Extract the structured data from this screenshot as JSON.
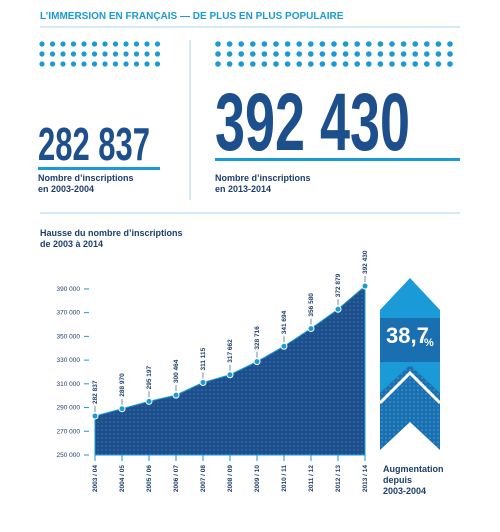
{
  "title": "L’IMMERSION EN FRANÇAIS — DE PLUS EN PLUS POPULAIRE",
  "stats": [
    {
      "number": "282 837",
      "lines": [
        "Nombre d’inscriptions",
        "en 2003-2004"
      ]
    },
    {
      "number": "392 430",
      "lines": [
        "Nombre d’inscriptions",
        "en 2013-2014"
      ]
    }
  ],
  "increase": {
    "number": "38,7",
    "unit": "%",
    "lines": [
      "Augmentation",
      "depuis",
      "2003-2004"
    ]
  },
  "chart_data": {
    "type": "area",
    "title": [
      "Hausse du nombre d’inscriptions",
      "de 2003 à 2014"
    ],
    "categories": [
      "2003 / 04",
      "2004 / 05",
      "2005 / 06",
      "2006 / 07",
      "2007 / 08",
      "2008 / 09",
      "2009 / 10",
      "2010 / 11",
      "2011 / 12",
      "2012 / 13",
      "2013 / 14"
    ],
    "values": [
      282837,
      288970,
      295197,
      300464,
      311115,
      317662,
      328716,
      341694,
      356580,
      372879,
      392430
    ],
    "value_labels": [
      "282 837",
      "288 970",
      "295 197",
      "300 464",
      "311 115",
      "317 662",
      "328 716",
      "341 694",
      "356 580",
      "372 879",
      "392 430"
    ],
    "color": "#1c4f8c",
    "ylim": [
      250000,
      395000
    ],
    "yticks": [
      {
        "value": 250000,
        "label": "250 000"
      },
      {
        "value": 270000,
        "label": "270 000"
      },
      {
        "value": 290000,
        "label": "290 000"
      },
      {
        "value": 310000,
        "label": "310 000"
      },
      {
        "value": 330000,
        "label": "330 000"
      },
      {
        "value": 350000,
        "label": "350 000"
      },
      {
        "value": 370000,
        "label": "370 000"
      },
      {
        "value": 390000,
        "label": "390 000"
      }
    ],
    "grid": false
  }
}
